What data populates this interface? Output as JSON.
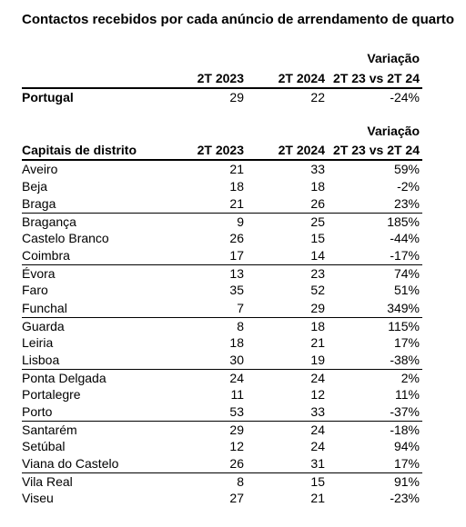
{
  "title": "Contactos recebidos por cada anúncio de arrendamento de quarto",
  "national_header": {
    "variation_line1": "Variação",
    "col_a": "2T 2023",
    "col_b": "2T 2024",
    "col_c": "2T 23 vs 2T 24"
  },
  "national_row": {
    "name": "Portugal",
    "a": "29",
    "b": "22",
    "c": "-24%"
  },
  "district_header": {
    "variation_line1": "Variação",
    "col_name": "Capitais de distrito",
    "col_a": "2T 2023",
    "col_b": "2T 2024",
    "col_c": "2T 23 vs 2T 24"
  },
  "rows": [
    {
      "name": "Aveiro",
      "a": "21",
      "b": "33",
      "c": "59%"
    },
    {
      "name": "Beja",
      "a": "18",
      "b": "18",
      "c": "-2%"
    },
    {
      "name": "Braga",
      "a": "21",
      "b": "26",
      "c": "23%"
    },
    {
      "name": "Bragança",
      "a": "9",
      "b": "25",
      "c": "185%"
    },
    {
      "name": "Castelo Branco",
      "a": "26",
      "b": "15",
      "c": "-44%"
    },
    {
      "name": "Coimbra",
      "a": "17",
      "b": "14",
      "c": "-17%"
    },
    {
      "name": "Évora",
      "a": "13",
      "b": "23",
      "c": "74%"
    },
    {
      "name": "Faro",
      "a": "35",
      "b": "52",
      "c": "51%"
    },
    {
      "name": "Funchal",
      "a": "7",
      "b": "29",
      "c": "349%"
    },
    {
      "name": "Guarda",
      "a": "8",
      "b": "18",
      "c": "115%"
    },
    {
      "name": "Leiria",
      "a": "18",
      "b": "21",
      "c": "17%"
    },
    {
      "name": "Lisboa",
      "a": "30",
      "b": "19",
      "c": "-38%"
    },
    {
      "name": "Ponta Delgada",
      "a": "24",
      "b": "24",
      "c": "2%"
    },
    {
      "name": "Portalegre",
      "a": "11",
      "b": "12",
      "c": "11%"
    },
    {
      "name": "Porto",
      "a": "53",
      "b": "33",
      "c": "-37%"
    },
    {
      "name": "Santarém",
      "a": "29",
      "b": "24",
      "c": "-18%"
    },
    {
      "name": "Setúbal",
      "a": "12",
      "b": "24",
      "c": "94%"
    },
    {
      "name": "Viana do Castelo",
      "a": "26",
      "b": "31",
      "c": "17%"
    },
    {
      "name": "Vila Real",
      "a": "8",
      "b": "15",
      "c": "91%"
    },
    {
      "name": "Viseu",
      "a": "27",
      "b": "21",
      "c": "-23%"
    }
  ]
}
